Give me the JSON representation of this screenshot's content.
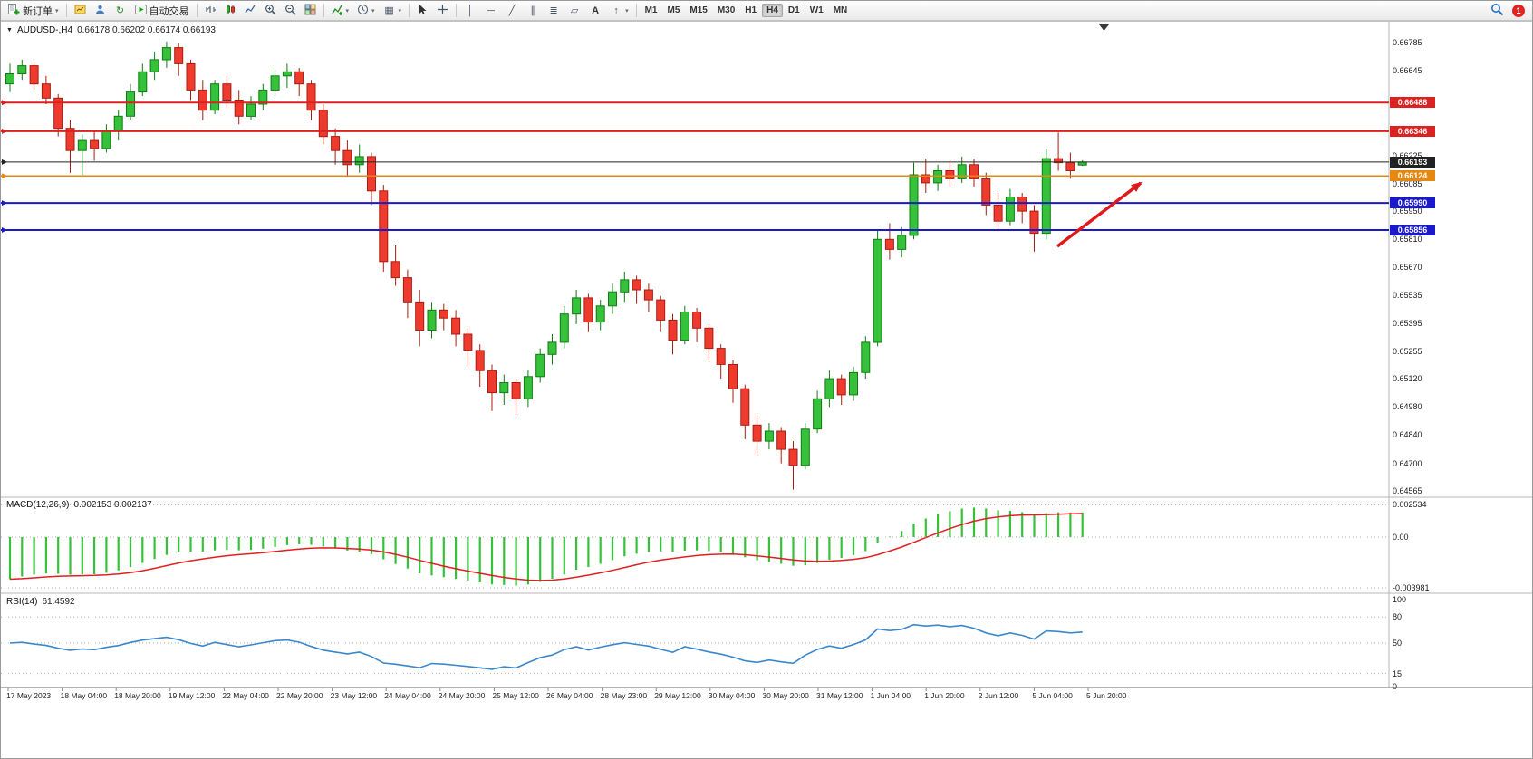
{
  "toolbar": {
    "new_order_label": "新订单",
    "auto_trading_label": "自动交易",
    "text_tool_label": "A",
    "timeframes": [
      "M1",
      "M5",
      "M15",
      "M30",
      "H1",
      "H4",
      "D1",
      "W1",
      "MN"
    ],
    "active_timeframe": "H4",
    "notification_count": "1"
  },
  "chart": {
    "collapse_marker": "▼",
    "symbol_title": "AUDUSD-,H4",
    "ohlc_text": "0.66178 0.66202 0.66174 0.66193",
    "price_axis_labels": [
      "0.66785",
      "0.66645",
      "0.66225",
      "0.66085",
      "0.65950",
      "0.65810",
      "0.65670",
      "0.65535",
      "0.65395",
      "0.65255",
      "0.65120",
      "0.64980",
      "0.64840",
      "0.64700",
      "0.64565"
    ],
    "levels": [
      {
        "price": "0.66488",
        "color": "#dd2020",
        "width": 2
      },
      {
        "price": "0.66346",
        "color": "#dd2020",
        "width": 2
      },
      {
        "price": "0.66193",
        "color": "#222222",
        "width": 1
      },
      {
        "price": "0.66124",
        "color": "#e8870e",
        "width": 1.5
      },
      {
        "price": "0.65990",
        "color": "#1a1acc",
        "width": 2
      },
      {
        "price": "0.65856",
        "color": "#1a1acc",
        "width": 2
      }
    ],
    "time_axis_labels": [
      "17 May 2023",
      "18 May 04:00",
      "18 May 20:00",
      "19 May 12:00",
      "22 May 04:00",
      "22 May 20:00",
      "23 May 12:00",
      "24 May 04:00",
      "24 May 20:00",
      "25 May 12:00",
      "26 May 04:00",
      "28 May 23:00",
      "29 May 12:00",
      "30 May 04:00",
      "30 May 20:00",
      "31 May 12:00",
      "1 Jun 04:00",
      "1 Jun 20:00",
      "2 Jun 12:00",
      "5 Jun 04:00",
      "5 Jun 20:00"
    ],
    "colors": {
      "up": "#35c13a",
      "up_border": "#0f7c14",
      "down": "#ef3b2d",
      "down_border": "#a81d12",
      "macd_hist": "#35c13a",
      "macd_signal": "#e02020",
      "rsi_line": "#3a87cc",
      "arrow": "#e01818"
    }
  },
  "chart_data": {
    "type": "candlestick",
    "symbol": "AUDUSD",
    "timeframe": "H4",
    "ohlc_current": {
      "open": 0.66178,
      "high": 0.66202,
      "low": 0.66174,
      "close": 0.66193
    },
    "candles": [
      [
        0.6658,
        0.6668,
        0.6654,
        0.6663
      ],
      [
        0.6663,
        0.667,
        0.666,
        0.6667
      ],
      [
        0.6667,
        0.6669,
        0.6655,
        0.6658
      ],
      [
        0.6658,
        0.6662,
        0.6648,
        0.6651
      ],
      [
        0.6651,
        0.6653,
        0.6632,
        0.6636
      ],
      [
        0.6636,
        0.664,
        0.6614,
        0.6625
      ],
      [
        0.6625,
        0.6633,
        0.6612,
        0.663
      ],
      [
        0.663,
        0.6635,
        0.662,
        0.6626
      ],
      [
        0.6626,
        0.6638,
        0.6624,
        0.6635
      ],
      [
        0.6635,
        0.6645,
        0.663,
        0.6642
      ],
      [
        0.6642,
        0.6658,
        0.664,
        0.6654
      ],
      [
        0.6654,
        0.6668,
        0.6652,
        0.6664
      ],
      [
        0.6664,
        0.6674,
        0.666,
        0.667
      ],
      [
        0.667,
        0.6679,
        0.6666,
        0.6676
      ],
      [
        0.6676,
        0.6678,
        0.6662,
        0.6668
      ],
      [
        0.6668,
        0.667,
        0.665,
        0.6655
      ],
      [
        0.6655,
        0.666,
        0.664,
        0.6645
      ],
      [
        0.6645,
        0.666,
        0.6643,
        0.6658
      ],
      [
        0.6658,
        0.6662,
        0.6646,
        0.665
      ],
      [
        0.665,
        0.6655,
        0.6638,
        0.6642
      ],
      [
        0.6642,
        0.6652,
        0.664,
        0.6648
      ],
      [
        0.6648,
        0.6658,
        0.6645,
        0.6655
      ],
      [
        0.6655,
        0.6665,
        0.6652,
        0.6662
      ],
      [
        0.6662,
        0.6668,
        0.6656,
        0.6664
      ],
      [
        0.6664,
        0.6666,
        0.6652,
        0.6658
      ],
      [
        0.6658,
        0.666,
        0.664,
        0.6645
      ],
      [
        0.6645,
        0.6648,
        0.6628,
        0.6632
      ],
      [
        0.6632,
        0.6636,
        0.6618,
        0.6625
      ],
      [
        0.6625,
        0.663,
        0.6612,
        0.6618
      ],
      [
        0.6618,
        0.6628,
        0.6614,
        0.6622
      ],
      [
        0.6622,
        0.6624,
        0.6598,
        0.6605
      ],
      [
        0.6605,
        0.6608,
        0.6565,
        0.657
      ],
      [
        0.657,
        0.6578,
        0.6558,
        0.6562
      ],
      [
        0.6562,
        0.6566,
        0.6542,
        0.655
      ],
      [
        0.655,
        0.6556,
        0.6528,
        0.6536
      ],
      [
        0.6536,
        0.655,
        0.6532,
        0.6546
      ],
      [
        0.6546,
        0.6549,
        0.6536,
        0.6542
      ],
      [
        0.6542,
        0.6546,
        0.6528,
        0.6534
      ],
      [
        0.6534,
        0.6537,
        0.6518,
        0.6526
      ],
      [
        0.6526,
        0.6529,
        0.6508,
        0.6516
      ],
      [
        0.6516,
        0.6519,
        0.6496,
        0.6505
      ],
      [
        0.6505,
        0.6514,
        0.6499,
        0.651
      ],
      [
        0.651,
        0.6512,
        0.6494,
        0.6502
      ],
      [
        0.6502,
        0.6516,
        0.6498,
        0.6513
      ],
      [
        0.6513,
        0.6527,
        0.651,
        0.6524
      ],
      [
        0.6524,
        0.6534,
        0.6519,
        0.653
      ],
      [
        0.653,
        0.6548,
        0.6527,
        0.6544
      ],
      [
        0.6544,
        0.6556,
        0.6539,
        0.6552
      ],
      [
        0.6552,
        0.6554,
        0.6535,
        0.654
      ],
      [
        0.654,
        0.6551,
        0.6536,
        0.6548
      ],
      [
        0.6548,
        0.6559,
        0.6544,
        0.6555
      ],
      [
        0.6555,
        0.6565,
        0.655,
        0.6561
      ],
      [
        0.6561,
        0.6563,
        0.6549,
        0.6556
      ],
      [
        0.6556,
        0.6559,
        0.6545,
        0.6551
      ],
      [
        0.6551,
        0.6553,
        0.6535,
        0.6541
      ],
      [
        0.6541,
        0.6544,
        0.6524,
        0.6531
      ],
      [
        0.6531,
        0.6548,
        0.6529,
        0.6545
      ],
      [
        0.6545,
        0.6547,
        0.653,
        0.6537
      ],
      [
        0.6537,
        0.6539,
        0.6521,
        0.6527
      ],
      [
        0.6527,
        0.6529,
        0.6512,
        0.6519
      ],
      [
        0.6519,
        0.6521,
        0.65,
        0.6507
      ],
      [
        0.6507,
        0.6509,
        0.6482,
        0.6489
      ],
      [
        0.6489,
        0.6494,
        0.6474,
        0.6481
      ],
      [
        0.6481,
        0.649,
        0.6477,
        0.6486
      ],
      [
        0.6486,
        0.6488,
        0.647,
        0.6477
      ],
      [
        0.6477,
        0.6481,
        0.6457,
        0.6469
      ],
      [
        0.6469,
        0.649,
        0.6467,
        0.6487
      ],
      [
        0.6487,
        0.6506,
        0.6485,
        0.6502
      ],
      [
        0.6502,
        0.6516,
        0.6498,
        0.6512
      ],
      [
        0.6512,
        0.6514,
        0.6499,
        0.6504
      ],
      [
        0.6504,
        0.6518,
        0.6501,
        0.6515
      ],
      [
        0.6515,
        0.6533,
        0.6512,
        0.653
      ],
      [
        0.653,
        0.6586,
        0.6528,
        0.6581
      ],
      [
        0.6581,
        0.6589,
        0.6571,
        0.6576
      ],
      [
        0.6576,
        0.6587,
        0.6572,
        0.6583
      ],
      [
        0.6583,
        0.6619,
        0.6581,
        0.6613
      ],
      [
        0.6613,
        0.6621,
        0.6604,
        0.6609
      ],
      [
        0.6609,
        0.6618,
        0.6605,
        0.6615
      ],
      [
        0.6615,
        0.662,
        0.6607,
        0.6611
      ],
      [
        0.6611,
        0.6622,
        0.6609,
        0.6618
      ],
      [
        0.6618,
        0.6621,
        0.6607,
        0.6611
      ],
      [
        0.6611,
        0.6614,
        0.6593,
        0.6598
      ],
      [
        0.6598,
        0.6604,
        0.6585,
        0.659
      ],
      [
        0.659,
        0.6606,
        0.6588,
        0.6602
      ],
      [
        0.6602,
        0.6604,
        0.6589,
        0.6595
      ],
      [
        0.6595,
        0.6598,
        0.6575,
        0.6584
      ],
      [
        0.6584,
        0.6626,
        0.6581,
        0.6621
      ],
      [
        0.6621,
        0.6634,
        0.6615,
        0.6619
      ],
      [
        0.6619,
        0.6624,
        0.6611,
        0.6615
      ],
      [
        0.66178,
        0.66202,
        0.66174,
        0.66193
      ]
    ]
  },
  "macd": {
    "title": "MACD(12,26,9)",
    "values_text": "0.002153 0.002137",
    "axis_labels": [
      "0.002534",
      "0.00",
      "-0.003981"
    ]
  },
  "rsi": {
    "title": "RSI(14)",
    "value_text": "61.4592",
    "axis_labels": [
      "100",
      "80",
      "50",
      "15",
      "0"
    ]
  }
}
